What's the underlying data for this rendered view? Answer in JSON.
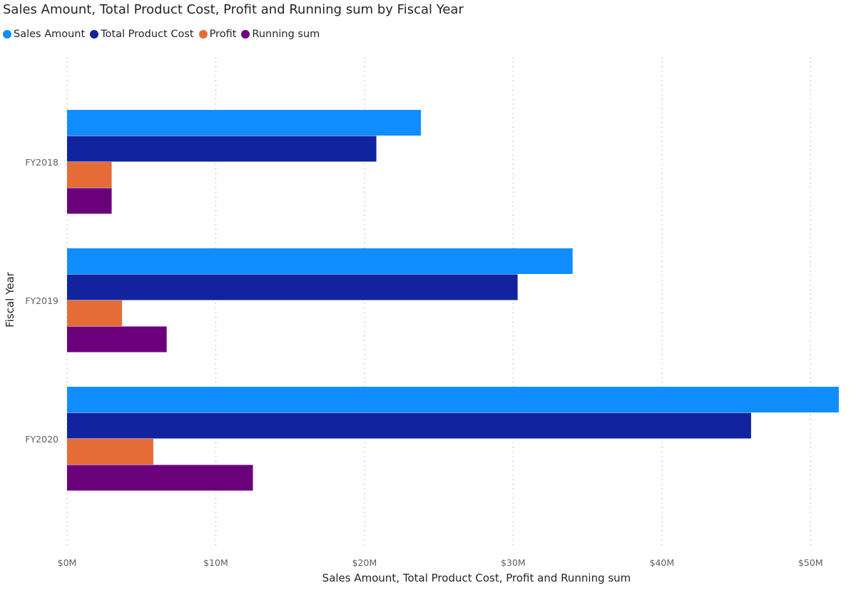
{
  "chart_data": {
    "type": "bar",
    "orientation": "horizontal",
    "title": "Sales Amount, Total Product Cost, Profit and Running sum by Fiscal Year",
    "xlabel": "Sales Amount, Total Product Cost, Profit and Running sum",
    "ylabel": "Fiscal Year",
    "categories": [
      "FY2018",
      "FY2019",
      "FY2020"
    ],
    "series": [
      {
        "name": "Sales Amount",
        "color": "#118DFF",
        "values": [
          23.8,
          34.0,
          51.9
        ]
      },
      {
        "name": "Total Product Cost",
        "color": "#12239E",
        "values": [
          20.8,
          30.3,
          46.0
        ]
      },
      {
        "name": "Profit",
        "color": "#E66C37",
        "values": [
          3.0,
          3.7,
          5.8
        ]
      },
      {
        "name": "Running sum",
        "color": "#6B007B",
        "values": [
          3.0,
          6.7,
          12.5
        ]
      }
    ],
    "unit": "$M",
    "xlim": [
      0,
      52
    ],
    "xticks": [
      0,
      10,
      20,
      30,
      40,
      50
    ],
    "xtick_labels": [
      "$0M",
      "$10M",
      "$20M",
      "$30M",
      "$40M",
      "$50M"
    ],
    "grid": "vertical dotted",
    "legend": "top-left"
  }
}
